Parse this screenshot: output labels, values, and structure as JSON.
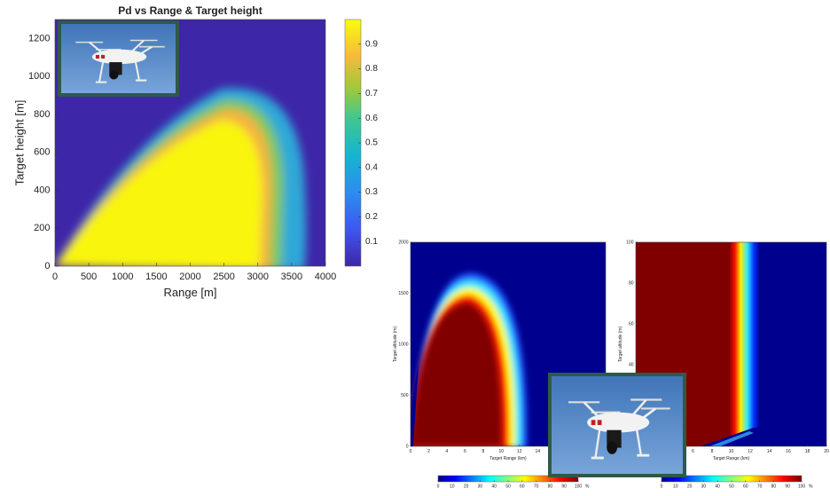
{
  "chart_data": [
    {
      "type": "heatmap",
      "title": "Pd vs Range & Target height",
      "xlabel": "Range [m]",
      "ylabel": "Target height [m]",
      "xlim": [
        0,
        4000
      ],
      "xticks": [
        0,
        500,
        1000,
        1500,
        2000,
        2500,
        3000,
        3500,
        4000
      ],
      "ylim": [
        0,
        1300
      ],
      "yticks": [
        0,
        200,
        400,
        600,
        800,
        1000,
        1200
      ],
      "colorbar": {
        "orientation": "vertical",
        "colormap": "parula",
        "lim": [
          0,
          1
        ],
        "ticks": [
          0.1,
          0.2,
          0.3,
          0.4,
          0.5,
          0.6,
          0.7,
          0.8,
          0.9
        ]
      }
    },
    {
      "type": "heatmap",
      "xlabel": "Target Range (km)",
      "ylabel": "Target altitude (m)",
      "xlim": [
        0,
        21.5
      ],
      "xticks": [
        0,
        2,
        4,
        6,
        8,
        10,
        12,
        14
      ],
      "ylim": [
        0,
        2000
      ],
      "yticks": [
        0,
        500,
        1000,
        1500,
        2000
      ],
      "colorbar": {
        "orientation": "horizontal",
        "colormap": "jet",
        "lim": [
          0,
          100
        ],
        "ticks": [
          0,
          10,
          20,
          30,
          40,
          50,
          60,
          70,
          80,
          90,
          100
        ],
        "label": "%"
      }
    },
    {
      "type": "heatmap",
      "xlabel": "Target Range (km)",
      "ylabel": "Target altitude (m)",
      "xlim": [
        0,
        20
      ],
      "xticks": [
        6,
        8,
        10,
        12,
        14,
        16,
        18,
        20
      ],
      "ylim": [
        0,
        100
      ],
      "yticks": [
        40,
        60,
        80,
        100
      ],
      "colorbar": {
        "orientation": "horizontal",
        "colormap": "jet",
        "lim": [
          0,
          100
        ],
        "ticks": [
          0,
          10,
          20,
          30,
          40,
          50,
          60,
          70,
          80,
          90,
          100
        ],
        "label": "%"
      }
    }
  ]
}
